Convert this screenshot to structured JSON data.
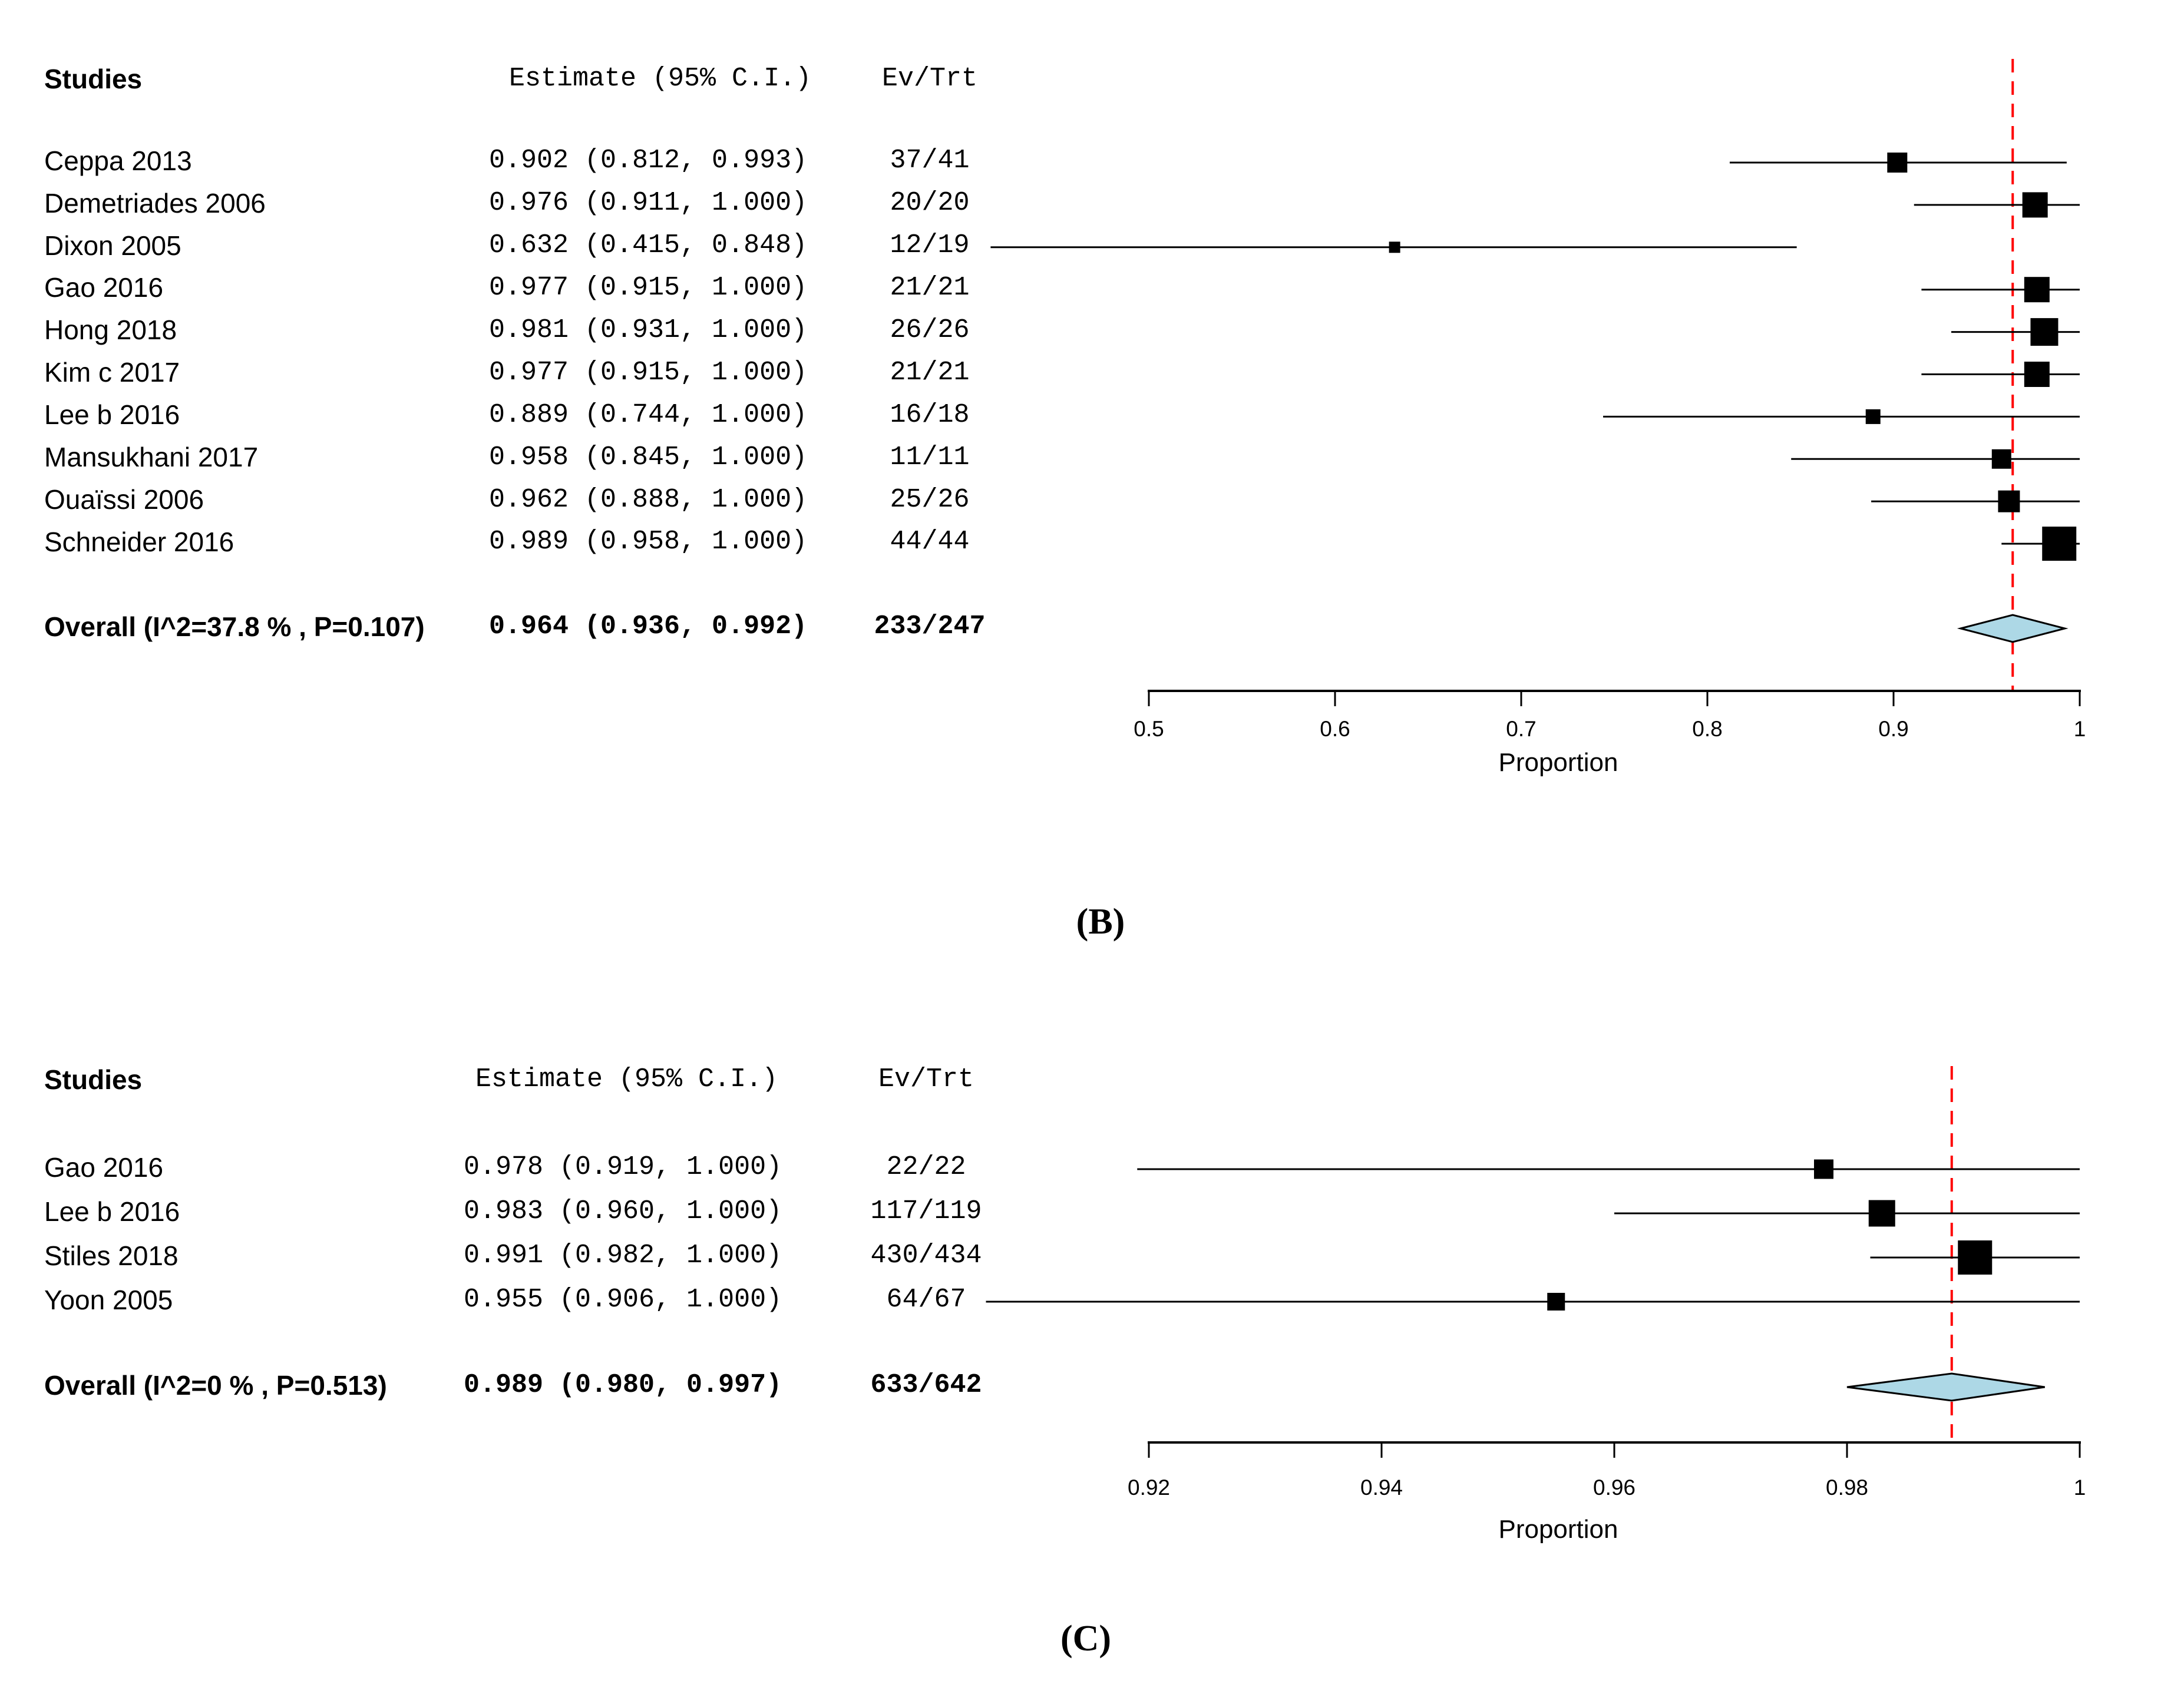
{
  "colors": {
    "background": "#ffffff",
    "text": "#000000",
    "ci_line": "#000000",
    "marker": "#000000",
    "axis": "#000000",
    "reference_line": "#ff0000",
    "diamond_fill": "#add8e6",
    "diamond_stroke": "#000000"
  },
  "chart_data": [
    {
      "type": "forest",
      "panel_label": "(B)",
      "columns": {
        "studies": "Studies",
        "estimate": "Estimate (95% C.I.)",
        "ev_trt": "Ev/Trt"
      },
      "xlabel": "Proportion",
      "axis": {
        "min": 0.5,
        "max": 1,
        "tick_values": [
          0.5,
          0.6,
          0.7,
          0.8,
          0.9,
          1
        ],
        "tick_labels": [
          "0.5",
          "0.6",
          "0.7",
          "0.8",
          "0.9",
          "1"
        ]
      },
      "grid": "off",
      "reference_line": 0.964,
      "studies": [
        {
          "name": "Ceppa 2013",
          "estimate": 0.902,
          "ci_lower": 0.812,
          "ci_upper": 0.993,
          "estimate_text": "0.902 (0.812, 0.993)",
          "ev_trt": "37/41",
          "marker_size": 34
        },
        {
          "name": "Demetriades 2006",
          "estimate": 0.976,
          "ci_lower": 0.911,
          "ci_upper": 1.0,
          "estimate_text": "0.976 (0.911, 1.000)",
          "ev_trt": "20/20",
          "marker_size": 43
        },
        {
          "name": "Dixon 2005",
          "estimate": 0.632,
          "ci_lower": 0.415,
          "ci_upper": 0.848,
          "estimate_text": "0.632 (0.415, 0.848)",
          "ev_trt": "12/19",
          "marker_size": 19
        },
        {
          "name": "Gao 2016",
          "estimate": 0.977,
          "ci_lower": 0.915,
          "ci_upper": 1.0,
          "estimate_text": "0.977 (0.915, 1.000)",
          "ev_trt": "21/21",
          "marker_size": 43
        },
        {
          "name": "Hong 2018",
          "estimate": 0.981,
          "ci_lower": 0.931,
          "ci_upper": 1.0,
          "estimate_text": "0.981 (0.931, 1.000)",
          "ev_trt": "26/26",
          "marker_size": 47
        },
        {
          "name": "Kim c 2017",
          "estimate": 0.977,
          "ci_lower": 0.915,
          "ci_upper": 1.0,
          "estimate_text": "0.977 (0.915, 1.000)",
          "ev_trt": "21/21",
          "marker_size": 43
        },
        {
          "name": "Lee b 2016",
          "estimate": 0.889,
          "ci_lower": 0.744,
          "ci_upper": 1.0,
          "estimate_text": "0.889 (0.744, 1.000)",
          "ev_trt": "16/18",
          "marker_size": 25
        },
        {
          "name": "Mansukhani 2017",
          "estimate": 0.958,
          "ci_lower": 0.845,
          "ci_upper": 1.0,
          "estimate_text": "0.958 (0.845, 1.000)",
          "ev_trt": "11/11",
          "marker_size": 33
        },
        {
          "name": "Ouaïssi 2006",
          "estimate": 0.962,
          "ci_lower": 0.888,
          "ci_upper": 1.0,
          "estimate_text": "0.962 (0.888, 1.000)",
          "ev_trt": "25/26",
          "marker_size": 37
        },
        {
          "name": "Schneider 2016",
          "estimate": 0.989,
          "ci_lower": 0.958,
          "ci_upper": 1.0,
          "estimate_text": "0.989 (0.958, 1.000)",
          "ev_trt": "44/44",
          "marker_size": 58
        }
      ],
      "overall": {
        "name": "Overall (I^2=37.8 % , P=0.107)",
        "estimate": 0.964,
        "ci_lower": 0.936,
        "ci_upper": 0.992,
        "estimate_text": "0.964 (0.936, 0.992)",
        "ev_trt": "233/247"
      }
    },
    {
      "type": "forest",
      "panel_label": "(C)",
      "columns": {
        "studies": "Studies",
        "estimate": "Estimate (95% C.I.)",
        "ev_trt": "Ev/Trt"
      },
      "xlabel": "Proportion",
      "axis": {
        "min": 0.92,
        "max": 1,
        "tick_values": [
          0.92,
          0.94,
          0.96,
          0.98,
          1
        ],
        "tick_labels": [
          "0.92",
          "0.94",
          "0.96",
          "0.98",
          "1"
        ]
      },
      "grid": "off",
      "reference_line": 0.989,
      "studies": [
        {
          "name": "Gao 2016",
          "estimate": 0.978,
          "ci_lower": 0.919,
          "ci_upper": 1.0,
          "estimate_text": "0.978 (0.919, 1.000)",
          "ev_trt": "22/22",
          "marker_size": 33
        },
        {
          "name": "Lee b 2016",
          "estimate": 0.983,
          "ci_lower": 0.96,
          "ci_upper": 1.0,
          "estimate_text": "0.983 (0.960, 1.000)",
          "ev_trt": "117/119",
          "marker_size": 45
        },
        {
          "name": "Stiles 2018",
          "estimate": 0.991,
          "ci_lower": 0.982,
          "ci_upper": 1.0,
          "estimate_text": "0.991 (0.982, 1.000)",
          "ev_trt": "430/434",
          "marker_size": 58
        },
        {
          "name": "Yoon 2005",
          "estimate": 0.955,
          "ci_lower": 0.906,
          "ci_upper": 1.0,
          "estimate_text": "0.955 (0.906, 1.000)",
          "ev_trt": "64/67",
          "marker_size": 30
        }
      ],
      "overall": {
        "name": "Overall (I^2=0 % , P=0.513)",
        "estimate": 0.989,
        "ci_lower": 0.98,
        "ci_upper": 0.997,
        "estimate_text": "0.989 (0.980, 0.997)",
        "ev_trt": "633/642"
      }
    }
  ]
}
